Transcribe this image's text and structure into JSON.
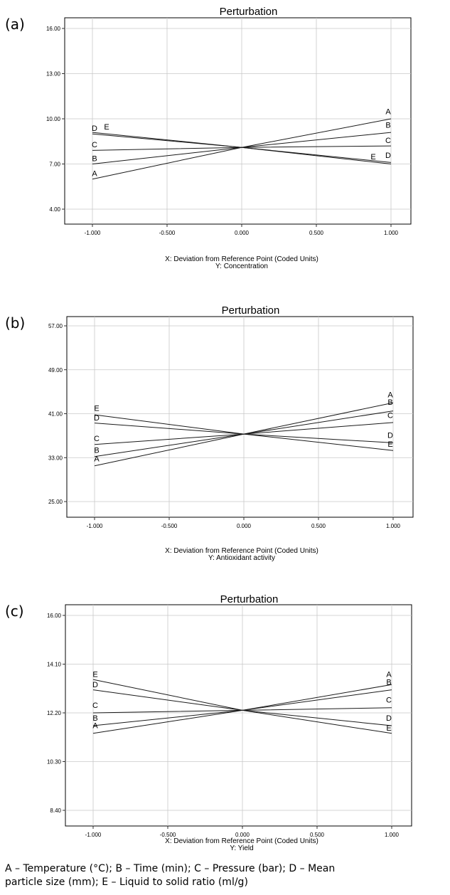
{
  "chart_data": [
    {
      "panel_label": "(a)",
      "type": "line",
      "title": "Perturbation",
      "xlabel": "X: Deviation from Reference Point (Coded Units)",
      "ylabel": "Y: Concentration",
      "xlim": [
        -1.0,
        1.0
      ],
      "ylim": [
        4.0,
        16.0
      ],
      "x_ticks": [
        "-1.000",
        "-0.500",
        "0.000",
        "0.500",
        "1.000"
      ],
      "y_ticks": [
        "4.00",
        "7.00",
        "10.00",
        "13.00",
        "16.00"
      ],
      "grid": true,
      "x": [
        -1,
        0,
        1
      ],
      "series": [
        {
          "name": "A",
          "values": [
            6.0,
            8.1,
            10.0
          ]
        },
        {
          "name": "B",
          "values": [
            7.0,
            8.1,
            9.1
          ]
        },
        {
          "name": "C",
          "values": [
            7.9,
            8.1,
            8.2
          ]
        },
        {
          "name": "D",
          "values": [
            9.1,
            8.1,
            7.0
          ]
        },
        {
          "name": "E",
          "values": [
            9.0,
            8.1,
            7.1
          ]
        }
      ],
      "left_labels": [
        {
          "text": "D",
          "at": 9.2,
          "dx": 0
        },
        {
          "text": "E",
          "at": 9.3,
          "dx": 17
        },
        {
          "text": "C",
          "at": 8.1,
          "dx": 0
        },
        {
          "text": "B",
          "at": 7.2,
          "dx": 0
        },
        {
          "text": "A",
          "at": 6.2,
          "dx": 0
        }
      ],
      "right_labels": [
        {
          "text": "A",
          "at": 10.3,
          "dx": 0
        },
        {
          "text": "B",
          "at": 9.4,
          "dx": 0
        },
        {
          "text": "C",
          "at": 8.4,
          "dx": 0
        },
        {
          "text": "E",
          "at": 7.3,
          "dx": -21
        },
        {
          "text": "D",
          "at": 7.4,
          "dx": 0
        }
      ]
    },
    {
      "panel_label": "(b)",
      "type": "line",
      "title": "Perturbation",
      "xlabel": "X: Deviation from Reference Point (Coded Units)",
      "ylabel": "Y: Antioxidant activity",
      "xlim": [
        -1.0,
        1.0
      ],
      "ylim": [
        25.0,
        57.0
      ],
      "x_ticks": [
        "-1.000",
        "-0.500",
        "0.000",
        "0.500",
        "1.000"
      ],
      "y_ticks": [
        "25.00",
        "33.00",
        "41.00",
        "49.00",
        "57.00"
      ],
      "grid": true,
      "x": [
        -1,
        0,
        1
      ],
      "series": [
        {
          "name": "A",
          "values": [
            31.5,
            37.3,
            43.0
          ]
        },
        {
          "name": "B",
          "values": [
            33.2,
            37.3,
            41.5
          ]
        },
        {
          "name": "C",
          "values": [
            35.4,
            37.3,
            39.4
          ]
        },
        {
          "name": "D",
          "values": [
            39.3,
            37.3,
            35.7
          ]
        },
        {
          "name": "E",
          "values": [
            40.8,
            37.3,
            34.3
          ]
        }
      ],
      "left_labels": [
        {
          "text": "E",
          "at": 41.5,
          "dx": 0
        },
        {
          "text": "D",
          "at": 39.8,
          "dx": 0
        },
        {
          "text": "C",
          "at": 36.0,
          "dx": 0
        },
        {
          "text": "B",
          "at": 33.9,
          "dx": 0
        },
        {
          "text": "A",
          "at": 32.3,
          "dx": 0
        }
      ],
      "right_labels": [
        {
          "text": "A",
          "at": 44.0,
          "dx": 0
        },
        {
          "text": "B",
          "at": 42.6,
          "dx": 0
        },
        {
          "text": "C",
          "at": 40.2,
          "dx": 0
        },
        {
          "text": "D",
          "at": 36.6,
          "dx": 0
        },
        {
          "text": "E",
          "at": 35.0,
          "dx": 0
        }
      ]
    },
    {
      "panel_label": "(c)",
      "type": "line",
      "title": "Perturbation",
      "xlabel": "X: Deviation from Reference Point (Coded Units)",
      "ylabel": "Y: Yield",
      "xlim": [
        -1.0,
        1.0
      ],
      "ylim": [
        8.4,
        16.0
      ],
      "x_ticks": [
        "-1.000",
        "-0.500",
        "0.000",
        "0.500",
        "1.000"
      ],
      "y_ticks": [
        "8.40",
        "10.30",
        "12.20",
        "14.10",
        "16.00"
      ],
      "grid": true,
      "x": [
        -1,
        0,
        1
      ],
      "series": [
        {
          "name": "A",
          "values": [
            11.4,
            12.3,
            13.3
          ]
        },
        {
          "name": "B",
          "values": [
            11.7,
            12.3,
            13.1
          ]
        },
        {
          "name": "C",
          "values": [
            12.2,
            12.3,
            12.4
          ]
        },
        {
          "name": "D",
          "values": [
            13.1,
            12.3,
            11.7
          ]
        },
        {
          "name": "E",
          "values": [
            13.5,
            12.3,
            11.4
          ]
        }
      ],
      "left_labels": [
        {
          "text": "E",
          "at": 13.6,
          "dx": 0
        },
        {
          "text": "D",
          "at": 13.2,
          "dx": 0
        },
        {
          "text": "C",
          "at": 12.4,
          "dx": 0
        },
        {
          "text": "B",
          "at": 11.9,
          "dx": 0
        },
        {
          "text": "A",
          "at": 11.6,
          "dx": 0
        }
      ],
      "right_labels": [
        {
          "text": "A",
          "at": 13.6,
          "dx": 0
        },
        {
          "text": "B",
          "at": 13.3,
          "dx": 0
        },
        {
          "text": "C",
          "at": 12.6,
          "dx": 0
        },
        {
          "text": "D",
          "at": 11.9,
          "dx": 0
        },
        {
          "text": "E",
          "at": 11.5,
          "dx": 0
        }
      ]
    }
  ],
  "caption": {
    "line1": "A – Temperature (°C); B – Time (min); C – Pressure (bar); D – Mean",
    "line2": "particle size (mm); E – Liquid to solid ratio (ml/g)"
  },
  "colors": {
    "line": "#1a1a1a",
    "grid": "#c8c8c8",
    "frame": "#000000"
  }
}
